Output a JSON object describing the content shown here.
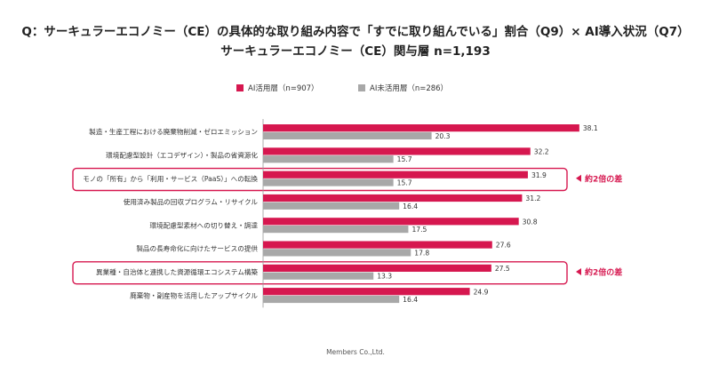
{
  "title_line1": "Q：サーキュラーエコノミー（CE）の具体的な取り組み内容で「すでに取り組んでいる」割合（Q9）× AI導入状況（Q7）",
  "title_line2": "サーキュラーエコノミー（CE）関与層 n=1,193",
  "footer": "Members Co.,Ltd.",
  "colors": {
    "ai_users": "#d6174f",
    "non_ai_users": "#a8a8a8",
    "highlight": "#d6174f"
  },
  "chart_data": {
    "type": "bar",
    "orientation": "horizontal",
    "categories": [
      "製造・生産工程における廃棄物削減・ゼロエミッション",
      "環境配慮型設計（エコデザイン）・製品の省資源化",
      "モノの「所有」から「利用・サービス（PaaS）」への転換",
      "使用済み製品の回収プログラム・リサイクル",
      "環境配慮型素材への切り替え・調達",
      "製品の長寿命化に向けたサービスの提供",
      "異業種・自治体と連携した資源循環エコシステム構築",
      "廃棄物・副産物を活用したアップサイクル"
    ],
    "series": [
      {
        "name": "AI活用層（n=907）",
        "values": [
          38.1,
          32.2,
          31.9,
          31.2,
          30.8,
          27.6,
          27.5,
          24.9
        ]
      },
      {
        "name": "AI未活用層（n=286）",
        "values": [
          20.3,
          15.7,
          15.7,
          16.4,
          17.5,
          17.8,
          13.3,
          16.4
        ]
      }
    ],
    "xlim": [
      0,
      40
    ],
    "highlights": [
      {
        "category_index": 2,
        "label": "約2倍の差"
      },
      {
        "category_index": 6,
        "label": "約2倍の差"
      }
    ]
  }
}
